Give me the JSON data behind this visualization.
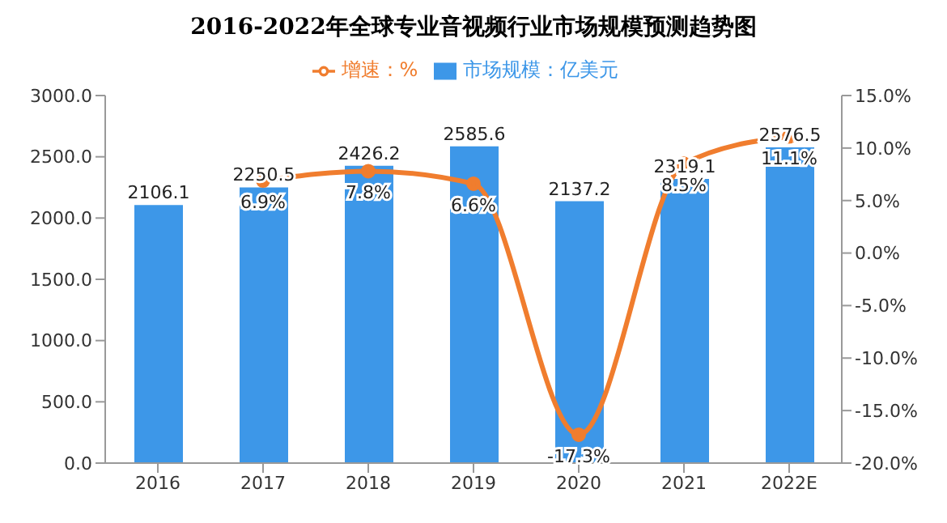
{
  "chart_data": {
    "type": "bar",
    "title": "2016-2022年全球专业音视频行业市场规模预测趋势图",
    "categories": [
      "2016",
      "2017",
      "2018",
      "2019",
      "2020",
      "2021",
      "2022E"
    ],
    "series": [
      {
        "name": "市场规模：亿美元",
        "color": "#3d97e8",
        "values": [
          2106.1,
          2250.5,
          2426.2,
          2585.6,
          2137.2,
          2319.1,
          2576.5
        ],
        "value_labels": [
          "2106.1",
          "2250.5",
          "2426.2",
          "2585.6",
          "2137.2",
          "2319.1",
          "2576.5"
        ]
      },
      {
        "name": "增速：%",
        "type": "line",
        "axis": "y2",
        "color": "#f07d2e",
        "values": [
          null,
          6.9,
          7.8,
          6.6,
          -17.3,
          8.5,
          11.1
        ],
        "value_labels": [
          null,
          "6.9%",
          "7.8%",
          "6.6%",
          "-17.3%",
          "8.5%",
          "11.1%"
        ]
      }
    ],
    "ylim": [
      0,
      3000
    ],
    "yticks": [
      {
        "value": 0,
        "label": "0.0"
      },
      {
        "value": 500,
        "label": "500.0"
      },
      {
        "value": 1000,
        "label": "1000.0"
      },
      {
        "value": 1500,
        "label": "1500.0"
      },
      {
        "value": 2000,
        "label": "2000.0"
      },
      {
        "value": 2500,
        "label": "2500.0"
      },
      {
        "value": 3000,
        "label": "3000.0"
      }
    ],
    "y2lim": [
      -20,
      15
    ],
    "y2ticks": [
      {
        "value": -20,
        "label": "-20.0%"
      },
      {
        "value": -15,
        "label": "-15.0%"
      },
      {
        "value": -10,
        "label": "-10.0%"
      },
      {
        "value": -5,
        "label": "-5.0%"
      },
      {
        "value": 0,
        "label": "0.0%"
      },
      {
        "value": 5,
        "label": "5.0%"
      },
      {
        "value": 10,
        "label": "10.0%"
      },
      {
        "value": 15,
        "label": "15.0%"
      }
    ],
    "legend": "top",
    "marker": "circle"
  }
}
